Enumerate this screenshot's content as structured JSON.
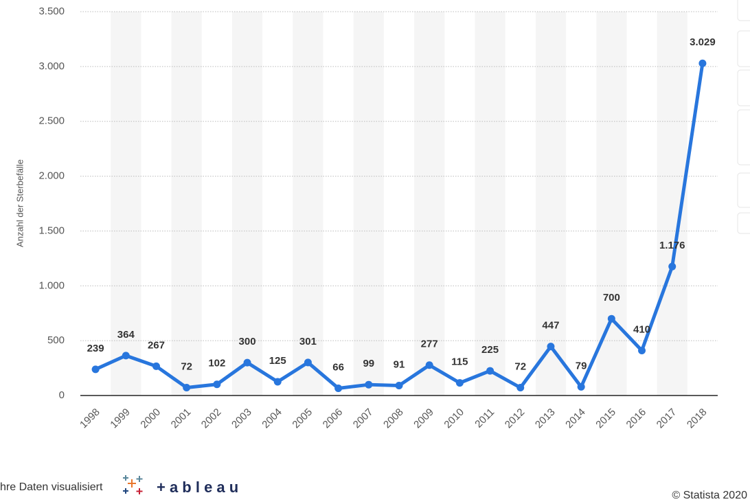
{
  "chart_data": {
    "type": "line",
    "y_label": "Anzahl der Sterbefälle",
    "categories": [
      "1998",
      "1999",
      "2000",
      "2001",
      "2002",
      "2003",
      "2004",
      "2005",
      "2006",
      "2007",
      "2008",
      "2009",
      "2010",
      "2011",
      "2012",
      "2013",
      "2014",
      "2015",
      "2016",
      "2017",
      "2018"
    ],
    "values": [
      239,
      364,
      267,
      72,
      102,
      300,
      125,
      301,
      66,
      99,
      91,
      277,
      115,
      225,
      72,
      447,
      79,
      700,
      410,
      1176,
      3029
    ],
    "value_labels": [
      "239",
      "364",
      "267",
      "72",
      "102",
      "300",
      "125",
      "301",
      "66",
      "99",
      "91",
      "277",
      "115",
      "225",
      "72",
      "447",
      "79",
      "700",
      "410",
      "1.176",
      "3.029"
    ],
    "color": "#2876dd",
    "ylim": [
      0,
      3500
    ],
    "yticks": [
      0,
      500,
      {
        "value": 1000,
        "label": "1.000"
      },
      {
        "value": 1500,
        "label": "1.500"
      },
      {
        "value": 2000,
        "label": "2.000"
      },
      {
        "value": 2500,
        "label": "2.500"
      },
      {
        "value": 3000,
        "label": "3.000"
      },
      {
        "value": 3500,
        "label": "3.500"
      }
    ],
    "grid": true
  },
  "footer": {
    "text": "hre Daten visualisiert",
    "logo": "+ a b l e a u",
    "copyright": "© Statista 2020"
  }
}
